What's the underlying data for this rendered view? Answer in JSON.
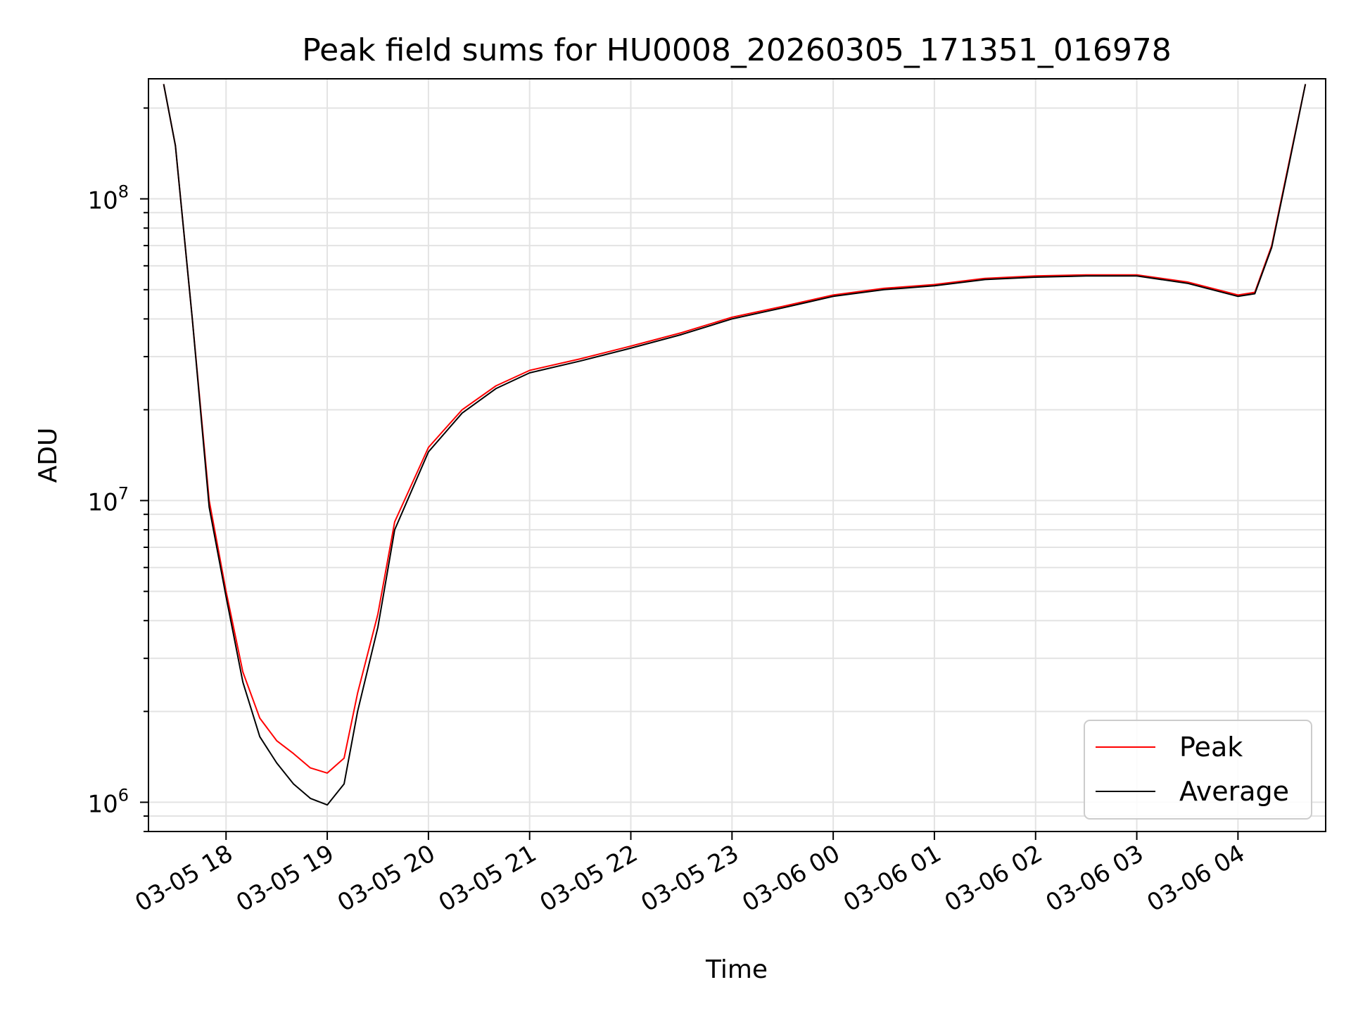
{
  "chart_data": {
    "type": "line",
    "title": "Peak field sums for HU0008_20260305_171351_016978",
    "xlabel": "Time",
    "ylabel": "ADU",
    "yscale": "log",
    "ylim": [
      800000,
      250000000
    ],
    "xlim": [
      "2026-03-05 17:14",
      "2026-03-06 04:52"
    ],
    "x_ticks": [
      {
        "value": "2026-03-05 18:00",
        "label": "03-05 18"
      },
      {
        "value": "2026-03-05 19:00",
        "label": "03-05 19"
      },
      {
        "value": "2026-03-05 20:00",
        "label": "03-05 20"
      },
      {
        "value": "2026-03-05 21:00",
        "label": "03-05 21"
      },
      {
        "value": "2026-03-05 22:00",
        "label": "03-05 22"
      },
      {
        "value": "2026-03-05 23:00",
        "label": "03-05 23"
      },
      {
        "value": "2026-03-06 00:00",
        "label": "03-06 00"
      },
      {
        "value": "2026-03-06 01:00",
        "label": "03-06 01"
      },
      {
        "value": "2026-03-06 02:00",
        "label": "03-06 02"
      },
      {
        "value": "2026-03-06 03:00",
        "label": "03-06 03"
      },
      {
        "value": "2026-03-06 04:00",
        "label": "03-06 04"
      }
    ],
    "y_ticks": [
      {
        "value": 1000000,
        "base": "10",
        "exp": "6"
      },
      {
        "value": 10000000,
        "base": "10",
        "exp": "7"
      },
      {
        "value": 100000000,
        "base": "10",
        "exp": "8"
      }
    ],
    "grid": true,
    "legend_position": "lower-right",
    "series": [
      {
        "name": "Peak",
        "color": "#ff0000",
        "points": [
          [
            "2026-03-05 17:23",
            240000000
          ],
          [
            "2026-03-05 17:30",
            150000000
          ],
          [
            "2026-03-05 17:40",
            40000000
          ],
          [
            "2026-03-05 17:50",
            10000000
          ],
          [
            "2026-03-05 18:00",
            5000000
          ],
          [
            "2026-03-05 18:10",
            2700000
          ],
          [
            "2026-03-05 18:20",
            1900000
          ],
          [
            "2026-03-05 18:30",
            1600000
          ],
          [
            "2026-03-05 18:40",
            1450000
          ],
          [
            "2026-03-05 18:50",
            1300000
          ],
          [
            "2026-03-05 19:00",
            1250000
          ],
          [
            "2026-03-05 19:10",
            1400000
          ],
          [
            "2026-03-05 19:18",
            2300000
          ],
          [
            "2026-03-05 19:30",
            4200000
          ],
          [
            "2026-03-05 19:40",
            8500000
          ],
          [
            "2026-03-05 20:00",
            15000000
          ],
          [
            "2026-03-05 20:20",
            20000000
          ],
          [
            "2026-03-05 20:40",
            24000000
          ],
          [
            "2026-03-05 21:00",
            27000000
          ],
          [
            "2026-03-05 21:30",
            29500000
          ],
          [
            "2026-03-05 22:00",
            32500000
          ],
          [
            "2026-03-05 22:30",
            36000000
          ],
          [
            "2026-03-05 23:00",
            40500000
          ],
          [
            "2026-03-05 23:30",
            44000000
          ],
          [
            "2026-03-06 00:00",
            48000000
          ],
          [
            "2026-03-06 00:30",
            50500000
          ],
          [
            "2026-03-06 01:00",
            52000000
          ],
          [
            "2026-03-06 01:30",
            54500000
          ],
          [
            "2026-03-06 02:00",
            55500000
          ],
          [
            "2026-03-06 02:30",
            56000000
          ],
          [
            "2026-03-06 03:00",
            56000000
          ],
          [
            "2026-03-06 03:30",
            53000000
          ],
          [
            "2026-03-06 04:00",
            48000000
          ],
          [
            "2026-03-06 04:10",
            49000000
          ],
          [
            "2026-03-06 04:20",
            70000000
          ],
          [
            "2026-03-06 04:30",
            130000000
          ],
          [
            "2026-03-06 04:40",
            240000000
          ]
        ]
      },
      {
        "name": "Average",
        "color": "#000000",
        "points": [
          [
            "2026-03-05 17:23",
            240000000
          ],
          [
            "2026-03-05 17:30",
            150000000
          ],
          [
            "2026-03-05 17:40",
            40000000
          ],
          [
            "2026-03-05 17:50",
            9500000
          ],
          [
            "2026-03-05 18:00",
            4800000
          ],
          [
            "2026-03-05 18:10",
            2500000
          ],
          [
            "2026-03-05 18:20",
            1650000
          ],
          [
            "2026-03-05 18:30",
            1350000
          ],
          [
            "2026-03-05 18:40",
            1150000
          ],
          [
            "2026-03-05 18:50",
            1030000
          ],
          [
            "2026-03-05 19:00",
            980000
          ],
          [
            "2026-03-05 19:10",
            1150000
          ],
          [
            "2026-03-05 19:18",
            2000000
          ],
          [
            "2026-03-05 19:30",
            3800000
          ],
          [
            "2026-03-05 19:40",
            8000000
          ],
          [
            "2026-03-05 20:00",
            14500000
          ],
          [
            "2026-03-05 20:20",
            19500000
          ],
          [
            "2026-03-05 20:40",
            23500000
          ],
          [
            "2026-03-05 21:00",
            26500000
          ],
          [
            "2026-03-05 21:30",
            29000000
          ],
          [
            "2026-03-05 22:00",
            32000000
          ],
          [
            "2026-03-05 22:30",
            35500000
          ],
          [
            "2026-03-05 23:00",
            40000000
          ],
          [
            "2026-03-05 23:30",
            43500000
          ],
          [
            "2026-03-06 00:00",
            47500000
          ],
          [
            "2026-03-06 00:30",
            50000000
          ],
          [
            "2026-03-06 01:00",
            51500000
          ],
          [
            "2026-03-06 01:30",
            54000000
          ],
          [
            "2026-03-06 02:00",
            55000000
          ],
          [
            "2026-03-06 02:30",
            55500000
          ],
          [
            "2026-03-06 03:00",
            55500000
          ],
          [
            "2026-03-06 03:30",
            52500000
          ],
          [
            "2026-03-06 04:00",
            47500000
          ],
          [
            "2026-03-06 04:10",
            48500000
          ],
          [
            "2026-03-06 04:20",
            69000000
          ],
          [
            "2026-03-06 04:30",
            128000000
          ],
          [
            "2026-03-06 04:40",
            240000000
          ]
        ]
      }
    ]
  }
}
